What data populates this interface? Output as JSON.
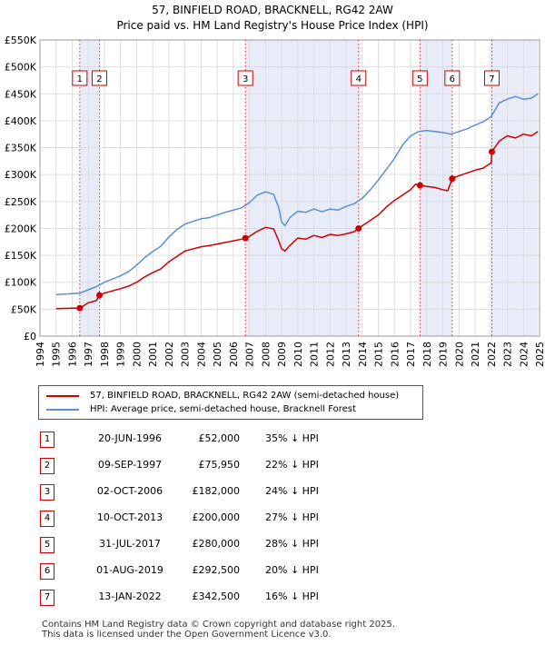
{
  "header": {
    "title": "57, BINFIELD ROAD, BRACKNELL, RG42 2AW",
    "subtitle": "Price paid vs. HM Land Registry's House Price Index (HPI)"
  },
  "legend": {
    "items": [
      {
        "label": "57, BINFIELD ROAD, BRACKNELL, RG42 2AW (semi-detached house)",
        "color": "#cc0000"
      },
      {
        "label": "HPI: Average price, semi-detached house, Bracknell Forest",
        "color": "#5b8fd0"
      }
    ]
  },
  "transactions": [
    {
      "num": "1",
      "date": "20-JUN-1996",
      "price": "£52,000",
      "hpi": "35% ↓ HPI"
    },
    {
      "num": "2",
      "date": "09-SEP-1997",
      "price": "£75,950",
      "hpi": "22% ↓ HPI"
    },
    {
      "num": "3",
      "date": "02-OCT-2006",
      "price": "£182,000",
      "hpi": "24% ↓ HPI"
    },
    {
      "num": "4",
      "date": "10-OCT-2013",
      "price": "£200,000",
      "hpi": "27% ↓ HPI"
    },
    {
      "num": "5",
      "date": "31-JUL-2017",
      "price": "£280,000",
      "hpi": "28% ↓ HPI"
    },
    {
      "num": "6",
      "date": "01-AUG-2019",
      "price": "£292,500",
      "hpi": "20% ↓ HPI"
    },
    {
      "num": "7",
      "date": "13-JAN-2022",
      "price": "£342,500",
      "hpi": "16% ↓ HPI"
    }
  ],
  "footer": {
    "line1": "Contains HM Land Registry data © Crown copyright and database right 2025.",
    "line2": "This data is licensed under the Open Government Licence v3.0."
  },
  "colors": {
    "price_line": "#cc0000",
    "hpi_line": "#5b8fd0",
    "shade": "#e8ecf8",
    "grid": "#dddddd"
  },
  "chart_data": {
    "type": "line",
    "title": "57, BINFIELD ROAD, BRACKNELL, RG42 2AW",
    "subtitle": "Price paid vs. HM Land Registry's House Price Index (HPI)",
    "xlim": [
      1994,
      2025
    ],
    "ylim": [
      0,
      550000
    ],
    "x_ticks": [
      "1994",
      "1995",
      "1996",
      "1997",
      "1998",
      "1999",
      "2000",
      "2001",
      "2002",
      "2003",
      "2004",
      "2005",
      "2006",
      "2007",
      "2008",
      "2009",
      "2010",
      "2011",
      "2012",
      "2013",
      "2014",
      "2015",
      "2016",
      "2017",
      "2018",
      "2019",
      "2020",
      "2021",
      "2022",
      "2023",
      "2024",
      "2025"
    ],
    "y_ticks": [
      {
        "value": 0,
        "label": "£0"
      },
      {
        "value": 50000,
        "label": "£50K"
      },
      {
        "value": 100000,
        "label": "£100K"
      },
      {
        "value": 150000,
        "label": "£150K"
      },
      {
        "value": 200000,
        "label": "£200K"
      },
      {
        "value": 250000,
        "label": "£250K"
      },
      {
        "value": 300000,
        "label": "£300K"
      },
      {
        "value": 350000,
        "label": "£350K"
      },
      {
        "value": 400000,
        "label": "£400K"
      },
      {
        "value": 450000,
        "label": "£450K"
      },
      {
        "value": 500000,
        "label": "£500K"
      },
      {
        "value": 550000,
        "label": "£550K"
      }
    ],
    "shaded_ranges": [
      [
        1996.47,
        1997.69
      ],
      [
        2006.75,
        2013.77
      ],
      [
        2017.58,
        2019.58
      ],
      [
        2022.04,
        2024.9
      ]
    ],
    "series": [
      {
        "name": "57, BINFIELD ROAD, BRACKNELL, RG42 2AW (semi-detached house)",
        "color": "#cc0000",
        "x": [
          1995.0,
          1995.5,
          1996.0,
          1996.47,
          1997.0,
          1997.5,
          1997.69,
          1998.0,
          1998.5,
          1999.0,
          1999.5,
          2000.0,
          2000.5,
          2001.0,
          2001.5,
          2002.0,
          2002.5,
          2003.0,
          2003.5,
          2004.0,
          2004.5,
          2005.0,
          2005.5,
          2006.0,
          2006.5,
          2006.75,
          2007.0,
          2007.5,
          2008.0,
          2008.5,
          2008.8,
          2009.0,
          2009.2,
          2009.5,
          2010.0,
          2010.5,
          2011.0,
          2011.5,
          2012.0,
          2012.5,
          2013.0,
          2013.5,
          2013.77,
          2014.0,
          2014.5,
          2015.0,
          2015.5,
          2016.0,
          2016.5,
          2017.0,
          2017.3,
          2017.58,
          2018.0,
          2018.5,
          2019.0,
          2019.3,
          2019.58,
          2020.0,
          2020.5,
          2021.0,
          2021.5,
          2022.0,
          2022.04,
          2022.5,
          2023.0,
          2023.5,
          2024.0,
          2024.5,
          2024.9
        ],
        "values": [
          51000,
          51500,
          52000,
          52000,
          62000,
          66000,
          75950,
          80000,
          84000,
          88000,
          93000,
          100000,
          110000,
          118000,
          125000,
          138000,
          148000,
          158000,
          162000,
          166000,
          168000,
          171000,
          174000,
          177000,
          180000,
          182000,
          185000,
          195000,
          202000,
          199000,
          178000,
          162000,
          158000,
          168000,
          182000,
          180000,
          187000,
          183000,
          189000,
          187000,
          190000,
          194000,
          200000,
          205000,
          215000,
          225000,
          240000,
          252000,
          262000,
          272000,
          282000,
          280000,
          278000,
          276000,
          272000,
          270000,
          292500,
          298000,
          303000,
          308000,
          312000,
          322000,
          342500,
          362000,
          372000,
          368000,
          375000,
          372000,
          380000
        ]
      },
      {
        "name": "HPI: Average price, semi-detached house, Bracknell Forest",
        "color": "#5b8fd0",
        "x": [
          1995.0,
          1995.5,
          1996.0,
          1996.5,
          1997.0,
          1997.5,
          1998.0,
          1998.5,
          1999.0,
          1999.5,
          2000.0,
          2000.5,
          2001.0,
          2001.5,
          2002.0,
          2002.5,
          2003.0,
          2003.5,
          2004.0,
          2004.5,
          2005.0,
          2005.5,
          2006.0,
          2006.5,
          2007.0,
          2007.5,
          2008.0,
          2008.5,
          2008.8,
          2009.0,
          2009.2,
          2009.5,
          2010.0,
          2010.5,
          2011.0,
          2011.5,
          2012.0,
          2012.5,
          2013.0,
          2013.5,
          2014.0,
          2014.5,
          2015.0,
          2015.5,
          2016.0,
          2016.5,
          2017.0,
          2017.5,
          2018.0,
          2018.5,
          2019.0,
          2019.5,
          2020.0,
          2020.5,
          2021.0,
          2021.5,
          2022.0,
          2022.5,
          2023.0,
          2023.5,
          2024.0,
          2024.5,
          2024.9
        ],
        "values": [
          77000,
          78000,
          79000,
          80000,
          86000,
          92000,
          100000,
          106000,
          112000,
          120000,
          132000,
          146000,
          157000,
          167000,
          184000,
          198000,
          208000,
          213000,
          218000,
          220000,
          225000,
          230000,
          234000,
          238000,
          248000,
          262000,
          268000,
          263000,
          240000,
          212000,
          205000,
          220000,
          232000,
          230000,
          236000,
          231000,
          236000,
          234000,
          241000,
          246000,
          256000,
          272000,
          290000,
          310000,
          330000,
          355000,
          372000,
          380000,
          382000,
          380000,
          378000,
          375000,
          380000,
          385000,
          392000,
          398000,
          408000,
          433000,
          440000,
          445000,
          440000,
          442000,
          450000
        ]
      }
    ],
    "sales": [
      {
        "label": "1",
        "x": 1996.47,
        "value": 52000
      },
      {
        "label": "2",
        "x": 1997.69,
        "value": 75950
      },
      {
        "label": "3",
        "x": 2006.75,
        "value": 182000
      },
      {
        "label": "4",
        "x": 2013.77,
        "value": 200000
      },
      {
        "label": "5",
        "x": 2017.58,
        "value": 280000
      },
      {
        "label": "6",
        "x": 2019.58,
        "value": 292500
      },
      {
        "label": "7",
        "x": 2022.04,
        "value": 342500
      }
    ]
  }
}
